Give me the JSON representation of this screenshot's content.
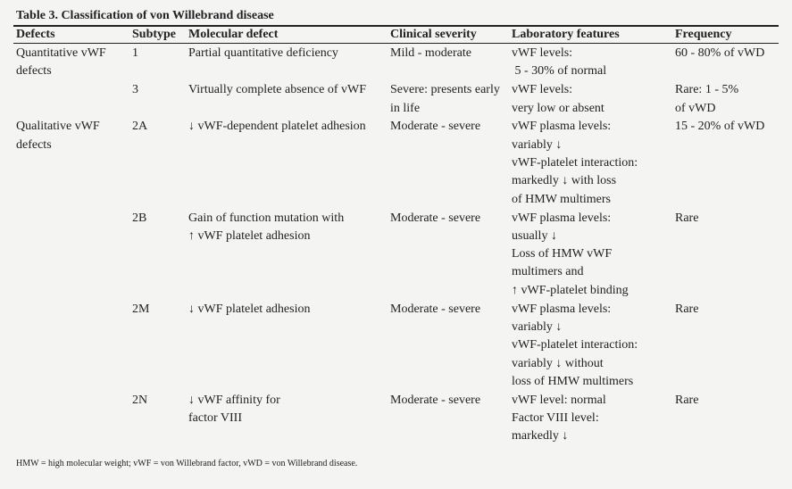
{
  "title": "Table 3. Classification of von Willebrand disease",
  "table": {
    "header": [
      "Defects",
      "Subtype",
      "Molecular defect",
      "Clinical severity",
      "Laboratory features",
      "Frequency"
    ],
    "rows": [
      {
        "defects": [
          "Quantitative vWF",
          "defects"
        ],
        "subtype": [
          "1"
        ],
        "molecular": [
          "Partial quantitative deficiency"
        ],
        "severity": [
          "Mild - moderate"
        ],
        "lab": [
          "vWF levels:",
          " 5 - 30% of normal"
        ],
        "frequency": [
          "60 - 80% of vWD"
        ]
      },
      {
        "subtype": [
          "3"
        ],
        "molecular": [
          "Virtually complete absence of vWF"
        ],
        "severity": [
          "Severe: presents early",
          "in life"
        ],
        "lab": [
          "vWF levels:",
          "very low or absent"
        ],
        "frequency": [
          "Rare: 1 - 5%",
          "of vWD"
        ]
      },
      {
        "defects": [
          "Qualitative vWF",
          "defects"
        ],
        "subtype": [
          "2A"
        ],
        "molecular": [
          "↓ vWF-dependent platelet adhesion"
        ],
        "severity": [
          "Moderate - severe"
        ],
        "lab": [
          "vWF plasma levels:",
          "variably ↓",
          "vWF-platelet interaction:",
          "markedly ↓ with loss",
          "of HMW multimers"
        ],
        "frequency": [
          "15 - 20% of vWD"
        ]
      },
      {
        "subtype": [
          "2B"
        ],
        "molecular": [
          "Gain of function mutation with",
          "↑ vWF platelet adhesion"
        ],
        "severity": [
          "Moderate - severe"
        ],
        "lab": [
          "vWF plasma levels:",
          "usually ↓",
          "Loss of HMW vWF",
          "multimers and",
          "↑ vWF-platelet binding"
        ],
        "frequency": [
          "Rare"
        ]
      },
      {
        "subtype": [
          "2M"
        ],
        "molecular": [
          "↓ vWF platelet adhesion"
        ],
        "severity": [
          "Moderate - severe"
        ],
        "lab": [
          "vWF plasma levels:",
          "variably ↓",
          "vWF-platelet interaction:",
          "variably ↓ without",
          "loss of HMW multimers"
        ],
        "frequency": [
          "Rare"
        ]
      },
      {
        "subtype": [
          "2N"
        ],
        "molecular": [
          "↓ vWF affinity for",
          "factor VIII"
        ],
        "severity": [
          "Moderate - severe"
        ],
        "lab": [
          "vWF level: normal",
          "Factor VIII level:",
          "markedly ↓"
        ],
        "frequency": [
          "Rare"
        ]
      }
    ]
  },
  "footnote": "HMW = high molecular weight; vWF = von Willebrand factor, vWD = von Willebrand disease."
}
